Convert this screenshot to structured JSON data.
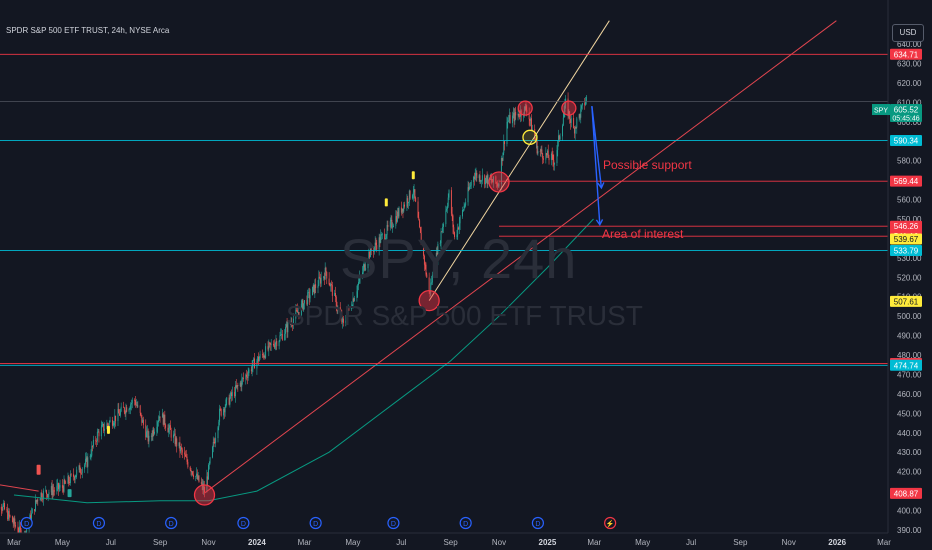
{
  "header": {
    "title": "SPDR S&P 500 ETF TRUST, 24h, NYSE Arca",
    "currency_button": "USD",
    "watermark_symbol": "SPY, 24h",
    "watermark_name": "SPDR S&P 500 ETF TRUST"
  },
  "chart_data": {
    "type": "candlestick",
    "title": "SPDR S&P 500 ETF TRUST, 24h, NYSE Arca",
    "symbol": "SPY",
    "ylim": [
      388,
      646
    ],
    "y_ticks": [
      390,
      400,
      410,
      420,
      430,
      440,
      450,
      460,
      470,
      480,
      490,
      500,
      510,
      520,
      530,
      540,
      550,
      560,
      570,
      580,
      590,
      600,
      610,
      620,
      630,
      640
    ],
    "x_ticks": [
      {
        "label": "Mar",
        "date": "2023-03-01"
      },
      {
        "label": "May",
        "date": "2023-05-01"
      },
      {
        "label": "Jul",
        "date": "2023-07-01"
      },
      {
        "label": "Sep",
        "date": "2023-09-01"
      },
      {
        "label": "Nov",
        "date": "2023-11-01"
      },
      {
        "label": "2024",
        "date": "2024-01-01"
      },
      {
        "label": "Mar",
        "date": "2024-03-01"
      },
      {
        "label": "May",
        "date": "2024-05-01"
      },
      {
        "label": "Jul",
        "date": "2024-07-01"
      },
      {
        "label": "Sep",
        "date": "2024-09-01"
      },
      {
        "label": "Nov",
        "date": "2024-11-01"
      },
      {
        "label": "2025",
        "date": "2025-01-01"
      },
      {
        "label": "Mar",
        "date": "2025-03-01"
      },
      {
        "label": "May",
        "date": "2025-05-01"
      },
      {
        "label": "Jul",
        "date": "2025-07-01"
      },
      {
        "label": "Sep",
        "date": "2025-09-01"
      },
      {
        "label": "Nov",
        "date": "2025-11-01"
      },
      {
        "label": "2026",
        "date": "2026-01-01"
      },
      {
        "label": "Mar",
        "date": "2026-03-01"
      }
    ],
    "price_path": [
      [
        "2023-02-01",
        410
      ],
      [
        "2023-03-13",
        386
      ],
      [
        "2023-04-01",
        408
      ],
      [
        "2023-05-01",
        412
      ],
      [
        "2023-06-01",
        425
      ],
      [
        "2023-06-15",
        440
      ],
      [
        "2023-07-31",
        457
      ],
      [
        "2023-08-18",
        436
      ],
      [
        "2023-09-01",
        450
      ],
      [
        "2023-10-01",
        428
      ],
      [
        "2023-10-27",
        410
      ],
      [
        "2023-11-15",
        450
      ],
      [
        "2023-12-29",
        476
      ],
      [
        "2024-02-01",
        490
      ],
      [
        "2024-03-28",
        523
      ],
      [
        "2024-04-19",
        495
      ],
      [
        "2024-05-21",
        532
      ],
      [
        "2024-06-15",
        545
      ],
      [
        "2024-07-16",
        565
      ],
      [
        "2024-08-05",
        512
      ],
      [
        "2024-08-30",
        563
      ],
      [
        "2024-09-06",
        540
      ],
      [
        "2024-09-30",
        573
      ],
      [
        "2024-10-31",
        568
      ],
      [
        "2024-11-11",
        600
      ],
      [
        "2024-12-06",
        607
      ],
      [
        "2024-12-20",
        585
      ],
      [
        "2025-01-10",
        580
      ],
      [
        "2025-01-24",
        609
      ],
      [
        "2025-02-03",
        596
      ],
      [
        "2025-02-19",
        612
      ]
    ],
    "moving_average": [
      [
        "2023-03-01",
        408
      ],
      [
        "2023-06-01",
        404
      ],
      [
        "2023-09-01",
        405
      ],
      [
        "2023-11-01",
        405
      ],
      [
        "2024-01-01",
        410
      ],
      [
        "2024-04-01",
        430
      ],
      [
        "2024-07-01",
        458
      ],
      [
        "2024-09-01",
        477
      ],
      [
        "2024-11-01",
        500
      ],
      [
        "2025-01-01",
        525
      ],
      [
        "2025-02-28",
        550
      ]
    ],
    "trend_lines": [
      {
        "color": "red",
        "points": [
          [
            "2022-12-01",
            418
          ],
          [
            "2023-04-01",
            410
          ]
        ]
      },
      {
        "color": "red",
        "points": [
          [
            "2023-10-27",
            409
          ],
          [
            "2025-12-31",
            652
          ]
        ]
      },
      {
        "color": "beige",
        "points": [
          [
            "2024-08-05",
            508
          ],
          [
            "2025-03-20",
            652
          ]
        ]
      }
    ],
    "levels": [
      {
        "value": 634.71,
        "label": "634.71",
        "color": "#f23645",
        "line": true
      },
      {
        "value": 590.34,
        "label": "590.34",
        "color": "#00bcd4",
        "line": true
      },
      {
        "value": 569.44,
        "label": "569.44",
        "color": "#f23645",
        "line": true
      },
      {
        "value": 546.26,
        "label": "546.26",
        "color": "#f23645",
        "line": true
      },
      {
        "value": 541.16,
        "label": "541.16",
        "color": "#f23645",
        "line": true
      },
      {
        "value": 539.67,
        "label": "539.67",
        "color": "#ffeb3b",
        "line": false
      },
      {
        "value": 533.79,
        "label": "533.79",
        "color": "#00bcd4",
        "line": true
      },
      {
        "value": 507.61,
        "label": "507.61",
        "color": "#ffeb3b",
        "line": false
      },
      {
        "value": 475.63,
        "label": "475.63",
        "color": "#f23645",
        "line": true
      },
      {
        "value": 474.74,
        "label": "474.74",
        "color": "#00bcd4",
        "line": true
      },
      {
        "value": 408.87,
        "label": "408.87",
        "color": "#f23645",
        "line": false
      }
    ],
    "current_price": {
      "symbol": "SPY",
      "value": "605.52",
      "countdown": "05:45:46"
    },
    "annotations": [
      {
        "text": "Possible support",
        "date": "2025-03-12",
        "value": 574
      },
      {
        "text": "Area of interest",
        "date": "2025-03-12",
        "value": 545
      }
    ],
    "markers": [
      {
        "date": "2023-10-27",
        "value": 408,
        "color": "red"
      },
      {
        "date": "2024-08-05",
        "value": 508,
        "color": "red"
      },
      {
        "date": "2024-11-01",
        "value": 569,
        "color": "red"
      },
      {
        "date": "2024-12-04",
        "value": 607,
        "color": "red"
      },
      {
        "date": "2025-01-28",
        "value": 607,
        "color": "red"
      },
      {
        "date": "2024-12-10",
        "value": 592,
        "color": "yellow"
      }
    ],
    "arrows": [
      {
        "from": [
          "2025-02-26",
          608
        ],
        "to": [
          "2025-03-10",
          566
        ]
      },
      {
        "from": [
          "2025-02-26",
          608
        ],
        "to": [
          "2025-03-08",
          547
        ]
      }
    ],
    "dividend_dates": [
      "2023-03-17",
      "2023-06-16",
      "2023-09-15",
      "2023-12-15",
      "2024-03-15",
      "2024-06-21",
      "2024-09-20",
      "2024-12-20"
    ],
    "upcoming_marker": {
      "date": "2025-03-21",
      "icon": "lightning-icon"
    }
  }
}
